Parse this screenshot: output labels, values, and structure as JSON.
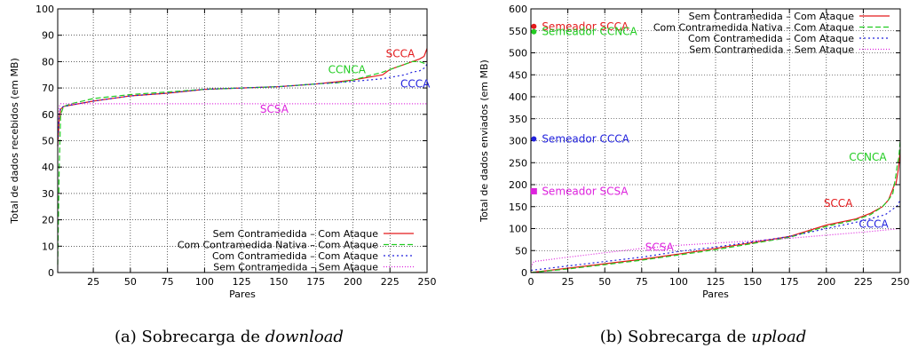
{
  "chart_data": [
    {
      "type": "line",
      "caption_prefix": "(a) Sobrecarga de",
      "caption_emph": "download",
      "xlabel": "Pares",
      "ylabel": "Total de dados recebidos (em MB)",
      "xlim": [
        1,
        250
      ],
      "ylim": [
        0,
        100
      ],
      "xticks": [
        25,
        50,
        75,
        100,
        125,
        150,
        175,
        200,
        225,
        250
      ],
      "yticks": [
        0,
        10,
        20,
        30,
        40,
        50,
        60,
        70,
        80,
        90,
        100
      ],
      "grid": true,
      "legend_position": "bottom-right",
      "series": [
        {
          "name": "Sem Contramedida – Com Ataque",
          "color": "#e41a1c",
          "dash": "solid",
          "x": [
            1,
            2,
            3,
            5,
            10,
            25,
            50,
            75,
            100,
            125,
            150,
            175,
            200,
            210,
            220,
            225,
            230,
            235,
            240,
            245,
            248,
            250
          ],
          "y": [
            48,
            58,
            62,
            63,
            63.5,
            65,
            67,
            68,
            69.5,
            70,
            70.5,
            71.5,
            73,
            74,
            75,
            77,
            78,
            79,
            80,
            81,
            82,
            85
          ]
        },
        {
          "name": "Com Contramedida Nativa – Com Ataque",
          "color": "#22cc22",
          "dash": "6,3",
          "x": [
            1,
            2,
            3,
            5,
            10,
            25,
            50,
            75,
            100,
            125,
            150,
            175,
            190,
            200,
            210,
            220,
            225,
            230,
            235,
            240,
            245,
            250
          ],
          "y": [
            3,
            40,
            60,
            63,
            64,
            66,
            67.5,
            68.5,
            69.5,
            70,
            70.5,
            71.5,
            72,
            73,
            74.5,
            76,
            77,
            78,
            79,
            80,
            80,
            79
          ]
        },
        {
          "name": "Com Contramedida – Com Ataque",
          "color": "#2222dd",
          "dash": "2,3",
          "x": [
            1,
            2,
            3,
            5,
            10,
            25,
            50,
            75,
            100,
            125,
            150,
            175,
            200,
            210,
            220,
            225,
            230,
            235,
            240,
            245,
            248,
            250
          ],
          "y": [
            48,
            60,
            62.5,
            63,
            63.5,
            65,
            67,
            68,
            69.5,
            70,
            70.5,
            71.5,
            72.5,
            73,
            73.5,
            74,
            74.5,
            75,
            76,
            76.5,
            77.5,
            79
          ]
        },
        {
          "name": "Sem Contramedida – Sem Ataque",
          "color": "#dd22dd",
          "dash": "1,2",
          "x": [
            1,
            2,
            3,
            10,
            50,
            100,
            150,
            200,
            250
          ],
          "y": [
            55,
            63,
            64,
            64,
            64,
            64,
            64,
            64,
            64
          ]
        }
      ],
      "annotations": [
        {
          "text": "SCCA",
          "x": 232,
          "y": 83,
          "color": "#e41a1c"
        },
        {
          "text": "CCNCA",
          "x": 196,
          "y": 77,
          "color": "#22cc22"
        },
        {
          "text": "CCCA",
          "x": 242,
          "y": 71.5,
          "color": "#2222dd"
        },
        {
          "text": "SCSA",
          "x": 147,
          "y": 62,
          "color": "#dd22dd"
        }
      ]
    },
    {
      "type": "line",
      "caption_prefix": "(b) Sobrecarga de",
      "caption_emph": "upload",
      "xlabel": "Pares",
      "ylabel": "Total de dados enviados (em MB)",
      "xlim": [
        0,
        250
      ],
      "ylim": [
        0,
        600
      ],
      "xticks": [
        0,
        25,
        50,
        75,
        100,
        125,
        150,
        175,
        200,
        225,
        250
      ],
      "yticks": [
        0,
        50,
        100,
        150,
        200,
        250,
        300,
        350,
        400,
        450,
        500,
        550,
        600
      ],
      "grid": true,
      "legend_position": "top-right",
      "series": [
        {
          "name": "Sem Contramedida – Com Ataque",
          "color": "#e41a1c",
          "dash": "solid",
          "x": [
            0,
            25,
            50,
            75,
            100,
            125,
            150,
            175,
            200,
            220,
            230,
            238,
            242,
            245,
            246,
            247,
            248,
            249,
            250
          ],
          "y": [
            0,
            10,
            20,
            30,
            42,
            55,
            68,
            82,
            108,
            122,
            135,
            150,
            165,
            190,
            200,
            200,
            220,
            240,
            280
          ]
        },
        {
          "name": "Com Contramedida Nativa – Com Ataque",
          "color": "#22cc22",
          "dash": "6,3",
          "x": [
            0,
            25,
            50,
            75,
            100,
            125,
            150,
            175,
            200,
            220,
            230,
            238,
            242,
            245,
            247,
            248,
            249,
            250
          ],
          "y": [
            0,
            8,
            18,
            28,
            40,
            52,
            66,
            80,
            105,
            120,
            132,
            150,
            165,
            180,
            220,
            245,
            260,
            300
          ]
        },
        {
          "name": "Com Contramedida – Com Ataque",
          "color": "#2222dd",
          "dash": "2,3",
          "x": [
            0,
            25,
            50,
            75,
            100,
            125,
            150,
            175,
            200,
            225,
            240,
            248,
            250
          ],
          "y": [
            5,
            15,
            25,
            35,
            48,
            58,
            70,
            82,
            100,
            118,
            132,
            152,
            165
          ]
        },
        {
          "name": "Sem Contramedida – Sem Ataque",
          "color": "#dd22dd",
          "dash": "1,2",
          "x": [
            0,
            2,
            25,
            50,
            75,
            100,
            125,
            150,
            175,
            200,
            225,
            250
          ],
          "y": [
            12,
            25,
            35,
            45,
            55,
            62,
            67,
            72,
            78,
            85,
            92,
            100
          ]
        }
      ],
      "seed_points": [
        {
          "label": "Semeador SCCA",
          "x": 2,
          "y": 560,
          "color": "#e41a1c",
          "shape": "circle"
        },
        {
          "label": "Semeador CCNCA",
          "x": 2,
          "y": 548,
          "color": "#22cc22",
          "shape": "circle"
        },
        {
          "label": "Semeador CCCA",
          "x": 2,
          "y": 304,
          "color": "#2222dd",
          "shape": "circle"
        },
        {
          "label": "Semeador SCSA",
          "x": 2,
          "y": 185,
          "color": "#dd22dd",
          "shape": "square"
        }
      ],
      "annotations": [
        {
          "text": "CCNCA",
          "x": 228,
          "y": 263,
          "color": "#22cc22"
        },
        {
          "text": "SCCA",
          "x": 208,
          "y": 158,
          "color": "#e41a1c"
        },
        {
          "text": "CCCA",
          "x": 232,
          "y": 110,
          "color": "#2222dd"
        },
        {
          "text": "SCSA",
          "x": 87,
          "y": 58,
          "color": "#dd22dd"
        }
      ]
    }
  ]
}
